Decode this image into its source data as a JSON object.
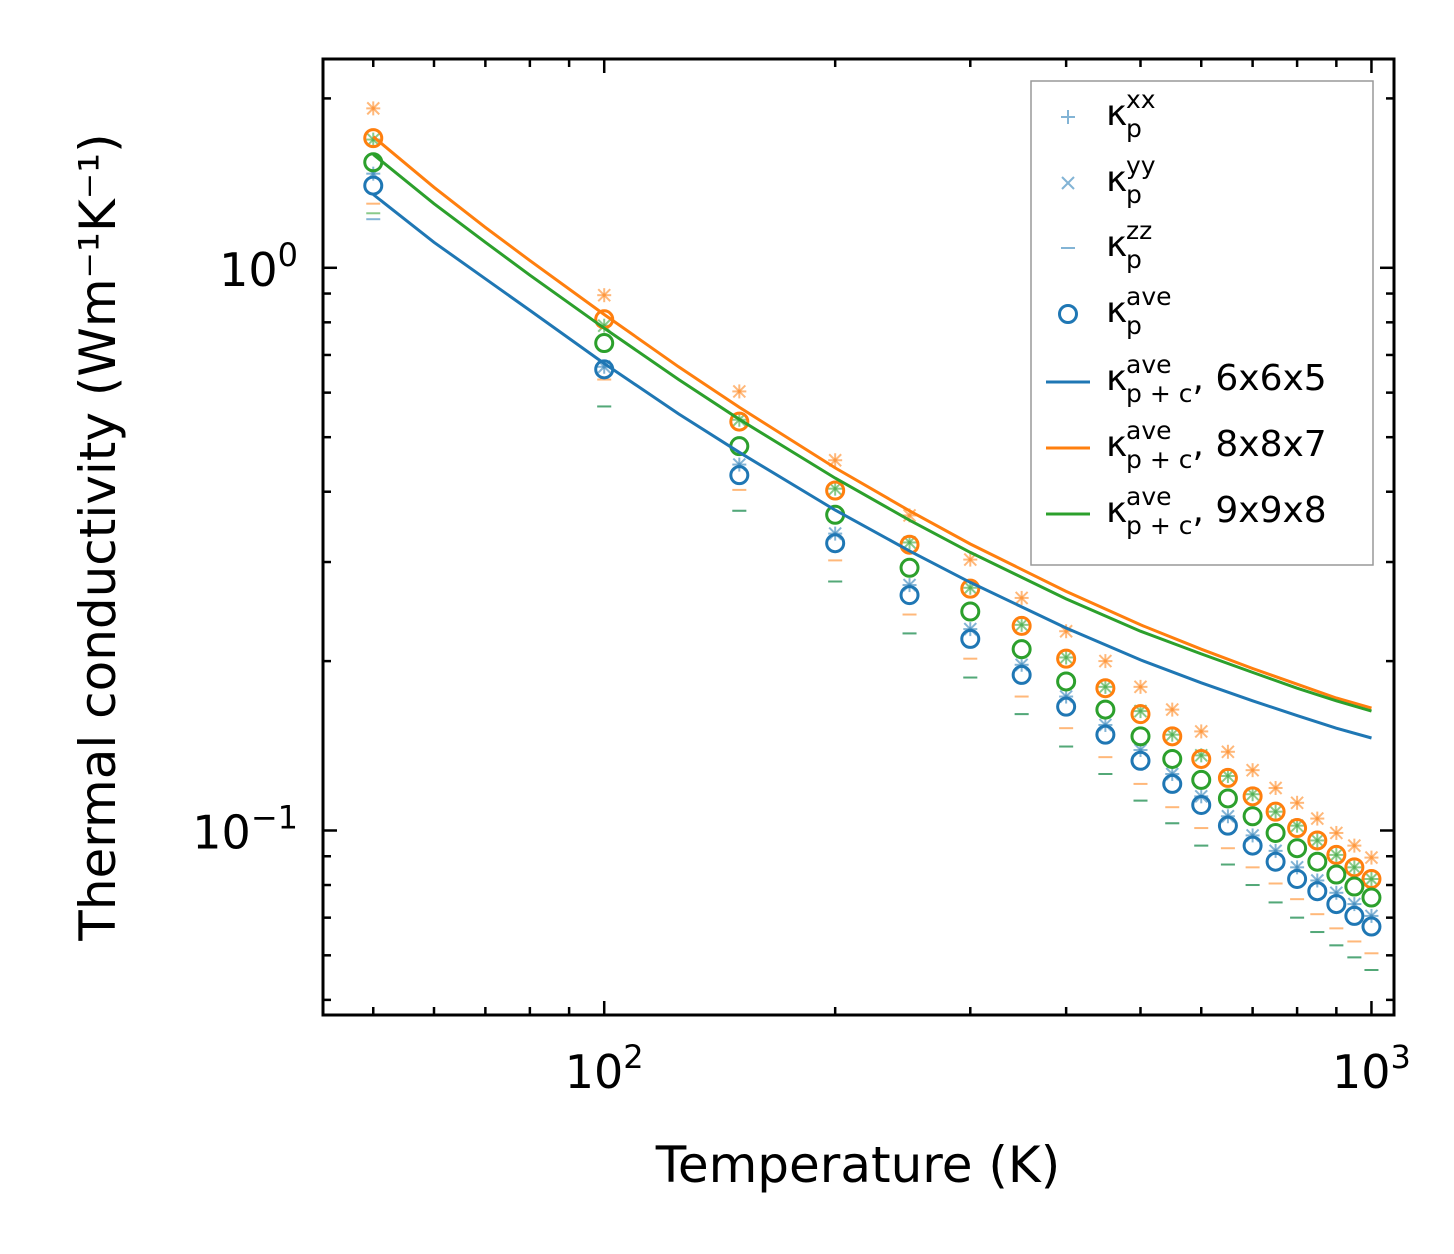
{
  "chart_data": {
    "type": "scatter",
    "title": "",
    "xlabel": "Temperature (K)",
    "ylabel": "Thermal conductivity (Wm⁻¹K⁻¹)",
    "xscale": "log",
    "yscale": "log",
    "xlim": [
      43,
      1070
    ],
    "ylim": [
      0.047,
      2.35
    ],
    "x_ticks": [
      {
        "value": 100,
        "base": "10",
        "exp": "2"
      },
      {
        "value": 1000,
        "base": "10",
        "exp": "3"
      }
    ],
    "y_ticks": [
      {
        "value": 0.1,
        "base": "10",
        "exp": "−1"
      },
      {
        "value": 1,
        "base": "10",
        "exp": "0"
      }
    ],
    "temperatures": [
      50,
      100,
      150,
      200,
      250,
      300,
      350,
      400,
      450,
      500,
      550,
      600,
      650,
      700,
      750,
      800,
      850,
      900,
      950,
      1000
    ],
    "meshes": [
      {
        "name": "6x6x5",
        "color": "#1f77b4",
        "kxx": [
          1.47,
          0.667,
          0.447,
          0.337,
          0.273,
          0.228,
          0.197,
          0.173,
          0.154,
          0.139,
          0.126,
          0.115,
          0.106,
          0.098,
          0.092,
          0.086,
          0.0815,
          0.0775,
          0.074,
          0.0705
        ],
        "kyy": [
          1.47,
          0.667,
          0.447,
          0.337,
          0.273,
          0.228,
          0.197,
          0.173,
          0.154,
          0.139,
          0.126,
          0.115,
          0.106,
          0.098,
          0.092,
          0.086,
          0.0815,
          0.0775,
          0.074,
          0.0705
        ],
        "kzz": [
          1.22,
          0.567,
          0.37,
          0.277,
          0.224,
          0.187,
          0.161,
          0.141,
          0.126,
          0.113,
          0.103,
          0.094,
          0.087,
          0.08,
          0.0745,
          0.07,
          0.066,
          0.0625,
          0.0595,
          0.0565
        ],
        "kave": [
          1.4,
          0.66,
          0.428,
          0.324,
          0.262,
          0.219,
          0.189,
          0.166,
          0.148,
          0.133,
          0.121,
          0.111,
          0.102,
          0.094,
          0.088,
          0.082,
          0.078,
          0.074,
          0.0705,
          0.0675
        ],
        "kpc_ave_T": [
          50,
          60,
          70,
          80,
          100,
          125,
          150,
          200,
          250,
          300,
          400,
          500,
          600,
          700,
          800,
          900,
          1000
        ],
        "kpc_ave": [
          1.35,
          1.11,
          0.956,
          0.84,
          0.676,
          0.55,
          0.47,
          0.371,
          0.314,
          0.276,
          0.229,
          0.201,
          0.183,
          0.17,
          0.16,
          0.152,
          0.146
        ]
      },
      {
        "name": "8x8x7",
        "color": "#ff7f0e",
        "kxx": [
          1.92,
          0.894,
          0.603,
          0.455,
          0.363,
          0.303,
          0.259,
          0.226,
          0.2,
          0.18,
          0.164,
          0.15,
          0.138,
          0.128,
          0.119,
          0.112,
          0.105,
          0.099,
          0.094,
          0.0895
        ],
        "kyy": [
          1.92,
          0.894,
          0.603,
          0.455,
          0.363,
          0.303,
          0.259,
          0.226,
          0.2,
          0.18,
          0.164,
          0.15,
          0.138,
          0.128,
          0.119,
          0.112,
          0.105,
          0.099,
          0.094,
          0.0895
        ],
        "kzz": [
          1.3,
          0.633,
          0.403,
          0.302,
          0.242,
          0.202,
          0.173,
          0.152,
          0.135,
          0.121,
          0.11,
          0.101,
          0.093,
          0.086,
          0.0805,
          0.0755,
          0.071,
          0.067,
          0.0635,
          0.0605
        ],
        "kave": [
          1.7,
          0.81,
          0.533,
          0.402,
          0.322,
          0.269,
          0.231,
          0.202,
          0.179,
          0.161,
          0.147,
          0.134,
          0.124,
          0.115,
          0.108,
          0.101,
          0.096,
          0.0905,
          0.086,
          0.082
        ],
        "kpc_ave_T": [
          50,
          60,
          70,
          80,
          100,
          125,
          150,
          200,
          250,
          300,
          400,
          500,
          600,
          700,
          800,
          900,
          1000
        ],
        "kpc_ave": [
          1.71,
          1.39,
          1.18,
          1.03,
          0.826,
          0.667,
          0.565,
          0.441,
          0.37,
          0.323,
          0.266,
          0.232,
          0.21,
          0.194,
          0.182,
          0.172,
          0.165
        ]
      },
      {
        "name": "9x9x8",
        "color": "#2ca02c",
        "kxx": [
          1.69,
          0.789,
          0.537,
          0.405,
          0.325,
          0.27,
          0.232,
          0.203,
          0.18,
          0.163,
          0.148,
          0.136,
          0.125,
          0.116,
          0.108,
          0.102,
          0.096,
          0.0905,
          0.086,
          0.082
        ],
        "kyy": [
          1.69,
          0.789,
          0.537,
          0.405,
          0.325,
          0.27,
          0.232,
          0.203,
          0.18,
          0.163,
          0.148,
          0.136,
          0.125,
          0.116,
          0.108,
          0.102,
          0.096,
          0.0905,
          0.086,
          0.082
        ],
        "kzz": [
          1.25,
          0.567,
          0.37,
          0.277,
          0.224,
          0.187,
          0.161,
          0.141,
          0.126,
          0.113,
          0.103,
          0.094,
          0.087,
          0.08,
          0.0745,
          0.07,
          0.066,
          0.0625,
          0.0595,
          0.0565
        ],
        "kave": [
          1.54,
          0.735,
          0.482,
          0.364,
          0.293,
          0.245,
          0.21,
          0.184,
          0.164,
          0.147,
          0.134,
          0.123,
          0.114,
          0.106,
          0.099,
          0.093,
          0.088,
          0.0835,
          0.0795,
          0.076
        ],
        "kpc_ave_T": [
          50,
          60,
          70,
          80,
          100,
          125,
          150,
          200,
          250,
          300,
          400,
          500,
          600,
          700,
          800,
          900,
          1000
        ],
        "kpc_ave": [
          1.59,
          1.3,
          1.11,
          0.97,
          0.781,
          0.633,
          0.538,
          0.423,
          0.356,
          0.312,
          0.258,
          0.226,
          0.206,
          0.191,
          0.179,
          0.17,
          0.163
        ]
      }
    ],
    "legend": {
      "position": "top-right",
      "entries": [
        {
          "symbol": "+",
          "base": "κ",
          "sub": "p",
          "sup": "xx",
          "suffix": ""
        },
        {
          "symbol": "×",
          "base": "κ",
          "sub": "p",
          "sup": "yy",
          "suffix": ""
        },
        {
          "symbol": "−",
          "base": "κ",
          "sub": "p",
          "sup": "zz",
          "suffix": ""
        },
        {
          "symbol": "o",
          "base": "κ",
          "sub": "p",
          "sup": "ave",
          "suffix": ""
        },
        {
          "symbol": "line",
          "base": "κ",
          "sub": "p + c",
          "sup": "ave",
          "suffix": ", 6x6x5",
          "color": "#1f77b4"
        },
        {
          "symbol": "line",
          "base": "κ",
          "sub": "p + c",
          "sup": "ave",
          "suffix": ", 8x8x7",
          "color": "#ff7f0e"
        },
        {
          "symbol": "line",
          "base": "κ",
          "sub": "p + c",
          "sup": "ave",
          "suffix": ", 9x9x8",
          "color": "#2ca02c"
        }
      ]
    }
  }
}
